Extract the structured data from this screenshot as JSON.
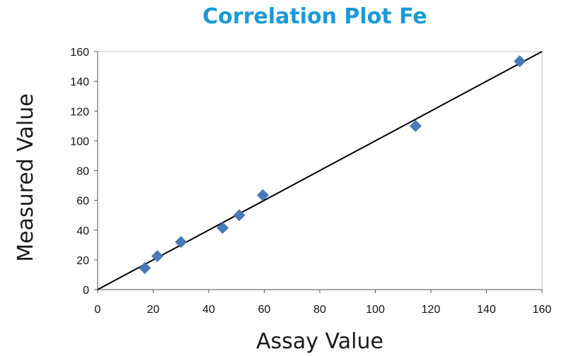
{
  "chart_data": {
    "type": "scatter",
    "title": "Correlation Plot Fe",
    "xlabel": "Assay Value",
    "ylabel": "Measured Value",
    "xlim": [
      0,
      160
    ],
    "ylim": [
      0,
      160
    ],
    "xticks": [
      0,
      20,
      40,
      60,
      80,
      100,
      120,
      140,
      160
    ],
    "yticks": [
      0,
      20,
      40,
      60,
      80,
      100,
      120,
      140,
      160
    ],
    "grid": false,
    "points": [
      {
        "x": 17,
        "y": 14.5
      },
      {
        "x": 21.5,
        "y": 22.5
      },
      {
        "x": 30,
        "y": 32
      },
      {
        "x": 45,
        "y": 41.5
      },
      {
        "x": 51,
        "y": 50
      },
      {
        "x": 59.5,
        "y": 63.5
      },
      {
        "x": 114.5,
        "y": 110
      },
      {
        "x": 152,
        "y": 153.5
      }
    ],
    "reference_line": {
      "from": [
        0,
        0
      ],
      "to": [
        160,
        160
      ]
    },
    "colors": {
      "title": "#1a9ad6",
      "marker": "#4a78b8",
      "line": "#000000",
      "axis": "#555555"
    }
  }
}
